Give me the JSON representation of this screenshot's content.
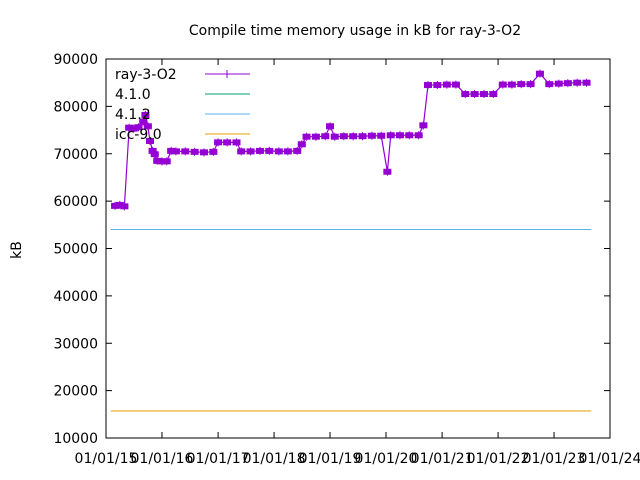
{
  "chart_data": {
    "type": "line",
    "title": "Compile time memory usage in kB for ray-3-O2",
    "xlabel": "",
    "ylabel": "kB",
    "ylim": [
      10000,
      90000
    ],
    "yticks": [
      10000,
      20000,
      30000,
      40000,
      50000,
      60000,
      70000,
      80000,
      90000
    ],
    "xlim": [
      "2015-01-01",
      "2024-01-01"
    ],
    "xticks": [
      "01/01/15",
      "01/01/16",
      "01/01/17",
      "01/01/18",
      "01/01/19",
      "01/01/20",
      "01/01/21",
      "01/01/22",
      "01/01/23",
      "01/01/24"
    ],
    "legend_position": "top-left",
    "grid": false,
    "series": [
      {
        "name": "ray-3-O2",
        "color": "#9400d3",
        "style": "linespoints",
        "points": [
          [
            "2015-03-01",
            59000
          ],
          [
            "2015-04-01",
            59200
          ],
          [
            "2015-05-01",
            58900
          ],
          [
            "2015-06-01",
            75500
          ],
          [
            "2015-07-01",
            75300
          ],
          [
            "2015-08-01",
            75600
          ],
          [
            "2015-09-01",
            76800
          ],
          [
            "2015-09-15",
            78200
          ],
          [
            "2015-10-01",
            75800
          ],
          [
            "2015-10-15",
            72700
          ],
          [
            "2015-11-01",
            70600
          ],
          [
            "2015-11-15",
            69900
          ],
          [
            "2015-12-01",
            68500
          ],
          [
            "2016-01-01",
            68400
          ],
          [
            "2016-02-01",
            68400
          ],
          [
            "2016-03-01",
            70600
          ],
          [
            "2016-04-01",
            70500
          ],
          [
            "2016-06-01",
            70500
          ],
          [
            "2016-08-01",
            70400
          ],
          [
            "2016-10-01",
            70300
          ],
          [
            "2016-12-01",
            70400
          ],
          [
            "2017-01-01",
            72400
          ],
          [
            "2017-03-01",
            72400
          ],
          [
            "2017-05-01",
            72400
          ],
          [
            "2017-06-01",
            70500
          ],
          [
            "2017-08-01",
            70500
          ],
          [
            "2017-10-01",
            70600
          ],
          [
            "2017-12-01",
            70600
          ],
          [
            "2018-02-01",
            70500
          ],
          [
            "2018-04-01",
            70500
          ],
          [
            "2018-06-01",
            70600
          ],
          [
            "2018-07-01",
            72000
          ],
          [
            "2018-08-01",
            73600
          ],
          [
            "2018-10-01",
            73600
          ],
          [
            "2018-12-01",
            73700
          ],
          [
            "2019-01-01",
            75800
          ],
          [
            "2019-02-01",
            73600
          ],
          [
            "2019-04-01",
            73700
          ],
          [
            "2019-06-01",
            73700
          ],
          [
            "2019-08-01",
            73700
          ],
          [
            "2019-10-01",
            73800
          ],
          [
            "2019-12-01",
            73800
          ],
          [
            "2020-01-10",
            66200
          ],
          [
            "2020-02-01",
            73900
          ],
          [
            "2020-04-01",
            73900
          ],
          [
            "2020-06-01",
            73900
          ],
          [
            "2020-08-01",
            73900
          ],
          [
            "2020-09-01",
            76000
          ],
          [
            "2020-10-01",
            84500
          ],
          [
            "2020-12-01",
            84500
          ],
          [
            "2021-02-01",
            84600
          ],
          [
            "2021-04-01",
            84600
          ],
          [
            "2021-06-01",
            82600
          ],
          [
            "2021-08-01",
            82600
          ],
          [
            "2021-10-01",
            82600
          ],
          [
            "2021-12-01",
            82600
          ],
          [
            "2022-02-01",
            84600
          ],
          [
            "2022-04-01",
            84600
          ],
          [
            "2022-06-01",
            84700
          ],
          [
            "2022-08-01",
            84700
          ],
          [
            "2022-10-01",
            86900
          ],
          [
            "2022-12-01",
            84700
          ],
          [
            "2023-02-01",
            84800
          ],
          [
            "2023-04-01",
            84900
          ],
          [
            "2023-06-01",
            85000
          ],
          [
            "2023-08-01",
            85000
          ]
        ]
      },
      {
        "name": "4.1.0",
        "color": "#009e73",
        "style": "line",
        "points": []
      },
      {
        "name": "4.1.2",
        "color": "#56b4e9",
        "style": "line",
        "points": [
          [
            "2015-02-01",
            54000
          ],
          [
            "2023-09-01",
            54000
          ]
        ]
      },
      {
        "name": "icc-9.0",
        "color": "#e69f00",
        "style": "line",
        "points": [
          [
            "2015-02-01",
            15700
          ],
          [
            "2023-09-01",
            15700
          ]
        ]
      }
    ]
  }
}
